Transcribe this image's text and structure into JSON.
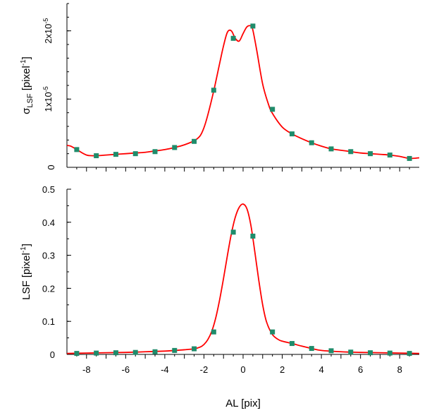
{
  "chart_data": [
    {
      "type": "line",
      "ylabel": {
        "base": "σ",
        "sub": "LSF",
        "rest": " [pixel",
        "sup": "-1",
        "end": "]"
      },
      "xlim": [
        -9,
        9
      ],
      "ylim": [
        0,
        2.4e-05
      ],
      "y_ticks": [
        {
          "value": 0,
          "label": "0",
          "exp": ""
        },
        {
          "value": 1e-05,
          "label": "1x10",
          "exp": "-5"
        },
        {
          "value": 2e-05,
          "label": "2x10",
          "exp": "-5"
        }
      ],
      "x_tick_labels_shown": false,
      "series": [
        {
          "kind": "curve",
          "color": "#ff0000",
          "x": [
            -9.0,
            -8.8,
            -8.5,
            -8.0,
            -7.5,
            -7.0,
            -6.5,
            -6.0,
            -5.5,
            -5.0,
            -4.5,
            -4.0,
            -3.5,
            -3.0,
            -2.5,
            -2.2,
            -2.0,
            -1.8,
            -1.5,
            -1.2,
            -1.0,
            -0.8,
            -0.6,
            -0.4,
            -0.2,
            0.0,
            0.2,
            0.4,
            0.5,
            0.7,
            1.0,
            1.3,
            1.5,
            2.0,
            2.5,
            3.0,
            3.5,
            4.0,
            4.5,
            5.0,
            5.5,
            6.0,
            6.5,
            7.0,
            7.5,
            8.0,
            8.5,
            9.0
          ],
          "y": [
            3.2e-06,
            3.1e-06,
            2.6e-06,
            1.8e-06,
            1.7e-06,
            1.8e-06,
            1.9e-06,
            2e-06,
            2.1e-06,
            2.2e-06,
            2.4e-06,
            2.6e-06,
            2.9e-06,
            3.3e-06,
            3.9e-06,
            4.6e-06,
            5.8e-06,
            7.7e-06,
            1.12e-05,
            1.52e-05,
            1.78e-05,
            1.98e-05,
            2e-05,
            1.89e-05,
            1.85e-05,
            1.96e-05,
            2.06e-05,
            2.07e-05,
            2.01e-05,
            1.71e-05,
            1.22e-05,
            9.2e-06,
            7.9e-06,
            5.9e-06,
            4.9e-06,
            4.2e-06,
            3.6e-06,
            3.1e-06,
            2.7e-06,
            2.5e-06,
            2.3e-06,
            2.1e-06,
            2e-06,
            1.9e-06,
            1.8e-06,
            1.6e-06,
            1.3e-06,
            1.4e-06
          ]
        },
        {
          "kind": "markers",
          "color": "#1f8c6b",
          "x": [
            -8.5,
            -7.5,
            -6.5,
            -5.5,
            -4.5,
            -3.5,
            -2.5,
            -1.5,
            -0.5,
            0.5,
            1.5,
            2.5,
            3.5,
            4.5,
            5.5,
            6.5,
            7.5,
            8.5
          ],
          "y": [
            2.6e-06,
            1.7e-06,
            1.9e-06,
            2e-06,
            2.3e-06,
            2.9e-06,
            3.8e-06,
            1.13e-05,
            1.89e-05,
            2.07e-05,
            8.5e-06,
            4.9e-06,
            3.6e-06,
            2.7e-06,
            2.3e-06,
            2e-06,
            1.8e-06,
            1.3e-06
          ]
        }
      ]
    },
    {
      "type": "line",
      "ylabel": {
        "base": "LSF",
        "sub": "",
        "rest": " [pixel",
        "sup": "-1",
        "end": "]"
      },
      "xlabel": "AL [pix]",
      "xlim": [
        -9,
        9
      ],
      "ylim": [
        0,
        0.5
      ],
      "y_ticks": [
        {
          "value": 0,
          "label": "0",
          "exp": ""
        },
        {
          "value": 0.1,
          "label": "0.1",
          "exp": ""
        },
        {
          "value": 0.2,
          "label": "0.2",
          "exp": ""
        },
        {
          "value": 0.3,
          "label": "0.3",
          "exp": ""
        },
        {
          "value": 0.4,
          "label": "0.4",
          "exp": ""
        },
        {
          "value": 0.5,
          "label": "0.5",
          "exp": ""
        }
      ],
      "x_ticks": [
        {
          "value": -8,
          "label": "-8"
        },
        {
          "value": -6,
          "label": "-6"
        },
        {
          "value": -4,
          "label": "-4"
        },
        {
          "value": -2,
          "label": "-2"
        },
        {
          "value": 0,
          "label": "0"
        },
        {
          "value": 2,
          "label": "2"
        },
        {
          "value": 4,
          "label": "4"
        },
        {
          "value": 6,
          "label": "6"
        },
        {
          "value": 8,
          "label": "8"
        }
      ],
      "series": [
        {
          "kind": "curve",
          "color": "#ff0000",
          "x": [
            -9.0,
            -8.0,
            -7.0,
            -6.0,
            -5.0,
            -4.0,
            -3.5,
            -3.0,
            -2.5,
            -2.2,
            -2.0,
            -1.8,
            -1.6,
            -1.4,
            -1.2,
            -1.0,
            -0.8,
            -0.6,
            -0.4,
            -0.2,
            0.0,
            0.2,
            0.4,
            0.6,
            0.8,
            1.0,
            1.2,
            1.5,
            1.8,
            2.0,
            2.5,
            3.0,
            3.5,
            4.0,
            5.0,
            6.0,
            7.0,
            8.0,
            9.0
          ],
          "y": [
            0.003,
            0.004,
            0.005,
            0.006,
            0.008,
            0.01,
            0.012,
            0.014,
            0.017,
            0.022,
            0.03,
            0.045,
            0.07,
            0.11,
            0.165,
            0.23,
            0.3,
            0.365,
            0.415,
            0.445,
            0.455,
            0.44,
            0.39,
            0.31,
            0.225,
            0.15,
            0.098,
            0.06,
            0.045,
            0.04,
            0.033,
            0.025,
            0.018,
            0.012,
            0.008,
            0.006,
            0.005,
            0.004,
            0.003
          ]
        },
        {
          "kind": "markers",
          "color": "#1f8c6b",
          "x": [
            -8.5,
            -7.5,
            -6.5,
            -5.5,
            -4.5,
            -3.5,
            -2.5,
            -1.5,
            -0.5,
            0.5,
            1.5,
            2.5,
            3.5,
            4.5,
            5.5,
            6.5,
            7.5,
            8.5
          ],
          "y": [
            0.003,
            0.004,
            0.005,
            0.006,
            0.008,
            0.012,
            0.017,
            0.068,
            0.37,
            0.358,
            0.068,
            0.033,
            0.018,
            0.011,
            0.007,
            0.005,
            0.004,
            0.003
          ]
        }
      ]
    }
  ]
}
